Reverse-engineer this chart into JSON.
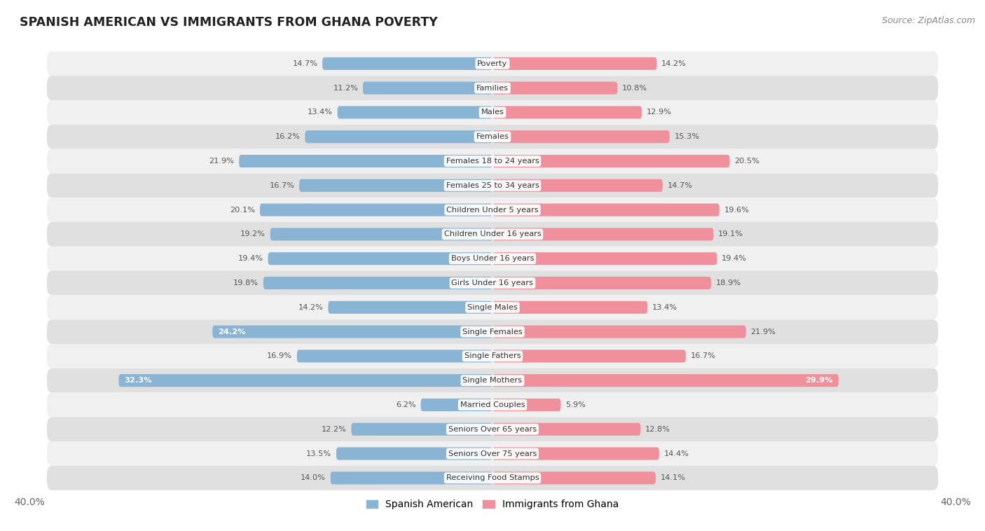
{
  "title": "SPANISH AMERICAN VS IMMIGRANTS FROM GHANA POVERTY",
  "source": "Source: ZipAtlas.com",
  "categories": [
    "Poverty",
    "Families",
    "Males",
    "Females",
    "Females 18 to 24 years",
    "Females 25 to 34 years",
    "Children Under 5 years",
    "Children Under 16 years",
    "Boys Under 16 years",
    "Girls Under 16 years",
    "Single Males",
    "Single Females",
    "Single Fathers",
    "Single Mothers",
    "Married Couples",
    "Seniors Over 65 years",
    "Seniors Over 75 years",
    "Receiving Food Stamps"
  ],
  "spanish_american": [
    14.7,
    11.2,
    13.4,
    16.2,
    21.9,
    16.7,
    20.1,
    19.2,
    19.4,
    19.8,
    14.2,
    24.2,
    16.9,
    32.3,
    6.2,
    12.2,
    13.5,
    14.0
  ],
  "immigrants_ghana": [
    14.2,
    10.8,
    12.9,
    15.3,
    20.5,
    14.7,
    19.6,
    19.1,
    19.4,
    18.9,
    13.4,
    21.9,
    16.7,
    29.9,
    5.9,
    12.8,
    14.4,
    14.1
  ],
  "color_spanish": "#8ab4d4",
  "color_ghana": "#f0909c",
  "color_spanish_inside": "#7aa8cc",
  "color_ghana_inside": "#e87888",
  "background_row_light": "#f0f0f0",
  "background_row_dark": "#e0e0e0",
  "xlim": 40.0,
  "bar_height": 0.52,
  "legend_label_spanish": "Spanish American",
  "legend_label_ghana": "Immigrants from Ghana",
  "inside_label_threshold": 22.0,
  "inside_label_threshold_ghana": 28.0
}
